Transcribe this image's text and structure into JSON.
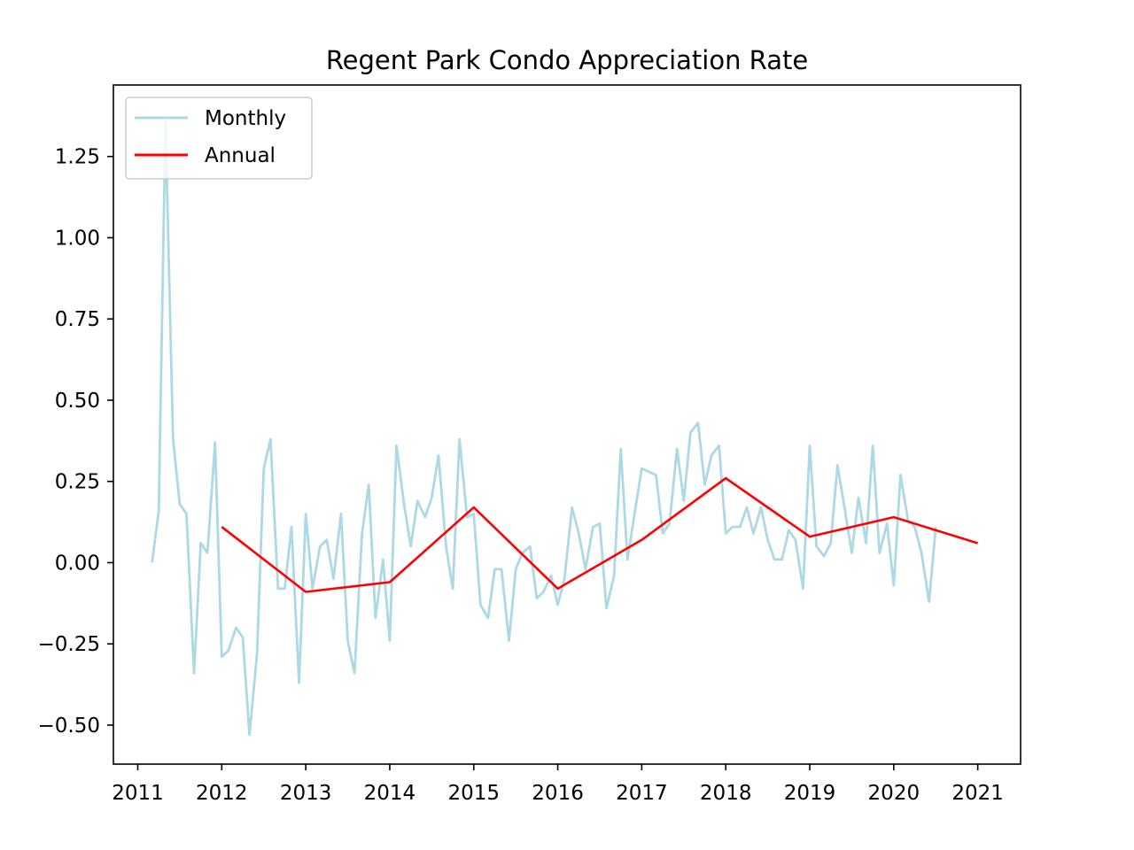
{
  "chart_data": {
    "type": "line",
    "title": "Regent Park Condo Appreciation Rate",
    "xlabel": "",
    "ylabel": "",
    "xlim": [
      2010.71,
      2021.51
    ],
    "ylim": [
      -0.62,
      1.47
    ],
    "x_ticks": [
      2011,
      2012,
      2013,
      2014,
      2015,
      2016,
      2017,
      2018,
      2019,
      2020,
      2021
    ],
    "x_tick_labels": [
      "2011",
      "2012",
      "2013",
      "2014",
      "2015",
      "2016",
      "2017",
      "2018",
      "2019",
      "2020",
      "2021"
    ],
    "y_ticks": [
      -0.5,
      -0.25,
      0.0,
      0.25,
      0.5,
      0.75,
      1.0,
      1.25
    ],
    "y_tick_labels": [
      "−0.50",
      "−0.25",
      "0.00",
      "0.25",
      "0.50",
      "0.75",
      "1.00",
      "1.25"
    ],
    "grid": false,
    "legend": {
      "placement": "top-left",
      "entries": [
        "Monthly",
        "Annual"
      ]
    },
    "colors": {
      "monthly": "#add8e6",
      "annual": "#ff0000"
    },
    "series": [
      {
        "name": "Monthly",
        "color": "#add8e6",
        "x": [
          2011.17,
          2011.25,
          2011.33,
          2011.42,
          2011.5,
          2011.58,
          2011.67,
          2011.75,
          2011.83,
          2011.92,
          2012.0,
          2012.08,
          2012.17,
          2012.25,
          2012.33,
          2012.42,
          2012.5,
          2012.58,
          2012.67,
          2012.75,
          2012.83,
          2012.92,
          2013.0,
          2013.08,
          2013.17,
          2013.25,
          2013.33,
          2013.42,
          2013.5,
          2013.58,
          2013.67,
          2013.75,
          2013.83,
          2013.92,
          2014.0,
          2014.08,
          2014.17,
          2014.25,
          2014.33,
          2014.42,
          2014.5,
          2014.58,
          2014.67,
          2014.75,
          2014.83,
          2014.92,
          2015.0,
          2015.08,
          2015.17,
          2015.25,
          2015.33,
          2015.42,
          2015.5,
          2015.58,
          2015.67,
          2015.75,
          2015.83,
          2015.92,
          2016.0,
          2016.08,
          2016.17,
          2016.25,
          2016.33,
          2016.42,
          2016.5,
          2016.58,
          2016.67,
          2016.75,
          2016.83,
          2016.92,
          2017.0,
          2017.08,
          2017.17,
          2017.25,
          2017.33,
          2017.42,
          2017.5,
          2017.58,
          2017.67,
          2017.75,
          2017.83,
          2017.92,
          2018.0,
          2018.08,
          2018.17,
          2018.25,
          2018.33,
          2018.42,
          2018.5,
          2018.58,
          2018.67,
          2018.75,
          2018.83,
          2018.92,
          2019.0,
          2019.08,
          2019.17,
          2019.25,
          2019.33,
          2019.42,
          2019.5,
          2019.58,
          2019.67,
          2019.75,
          2019.83,
          2019.92,
          2020.0,
          2020.08,
          2020.17,
          2020.25,
          2020.33,
          2020.42,
          2020.5
        ],
        "values": [
          0.0,
          0.16,
          1.36,
          0.38,
          0.18,
          0.15,
          -0.34,
          0.06,
          0.03,
          0.37,
          -0.29,
          -0.27,
          -0.2,
          -0.23,
          -0.53,
          -0.28,
          0.29,
          0.38,
          -0.08,
          -0.08,
          0.11,
          -0.37,
          0.15,
          -0.08,
          0.05,
          0.07,
          -0.05,
          0.15,
          -0.24,
          -0.34,
          0.09,
          0.24,
          -0.17,
          0.01,
          -0.24,
          0.36,
          0.18,
          0.05,
          0.19,
          0.14,
          0.2,
          0.33,
          0.05,
          -0.08,
          0.38,
          0.14,
          0.15,
          -0.13,
          -0.17,
          -0.02,
          -0.02,
          -0.24,
          -0.02,
          0.03,
          0.05,
          -0.11,
          -0.09,
          -0.04,
          -0.13,
          -0.05,
          0.17,
          0.09,
          -0.02,
          0.11,
          0.12,
          -0.14,
          -0.04,
          0.35,
          0.01,
          0.16,
          0.29,
          0.28,
          0.27,
          0.09,
          0.12,
          0.35,
          0.19,
          0.4,
          0.43,
          0.24,
          0.33,
          0.36,
          0.09,
          0.11,
          0.11,
          0.17,
          0.09,
          0.17,
          0.07,
          0.01,
          0.01,
          0.1,
          0.07,
          -0.08,
          0.36,
          0.05,
          0.02,
          0.06,
          0.3,
          0.16,
          0.03,
          0.2,
          0.06,
          0.36,
          0.03,
          0.12,
          -0.07,
          0.27,
          0.13,
          0.11,
          0.03,
          -0.12,
          0.11
        ]
      },
      {
        "name": "Annual",
        "color": "#ff0000",
        "x": [
          2012,
          2013,
          2014,
          2015,
          2016,
          2017,
          2018,
          2019,
          2020,
          2021
        ],
        "values": [
          0.11,
          -0.09,
          -0.06,
          0.17,
          -0.08,
          0.07,
          0.26,
          0.08,
          0.14,
          0.06
        ]
      }
    ]
  }
}
